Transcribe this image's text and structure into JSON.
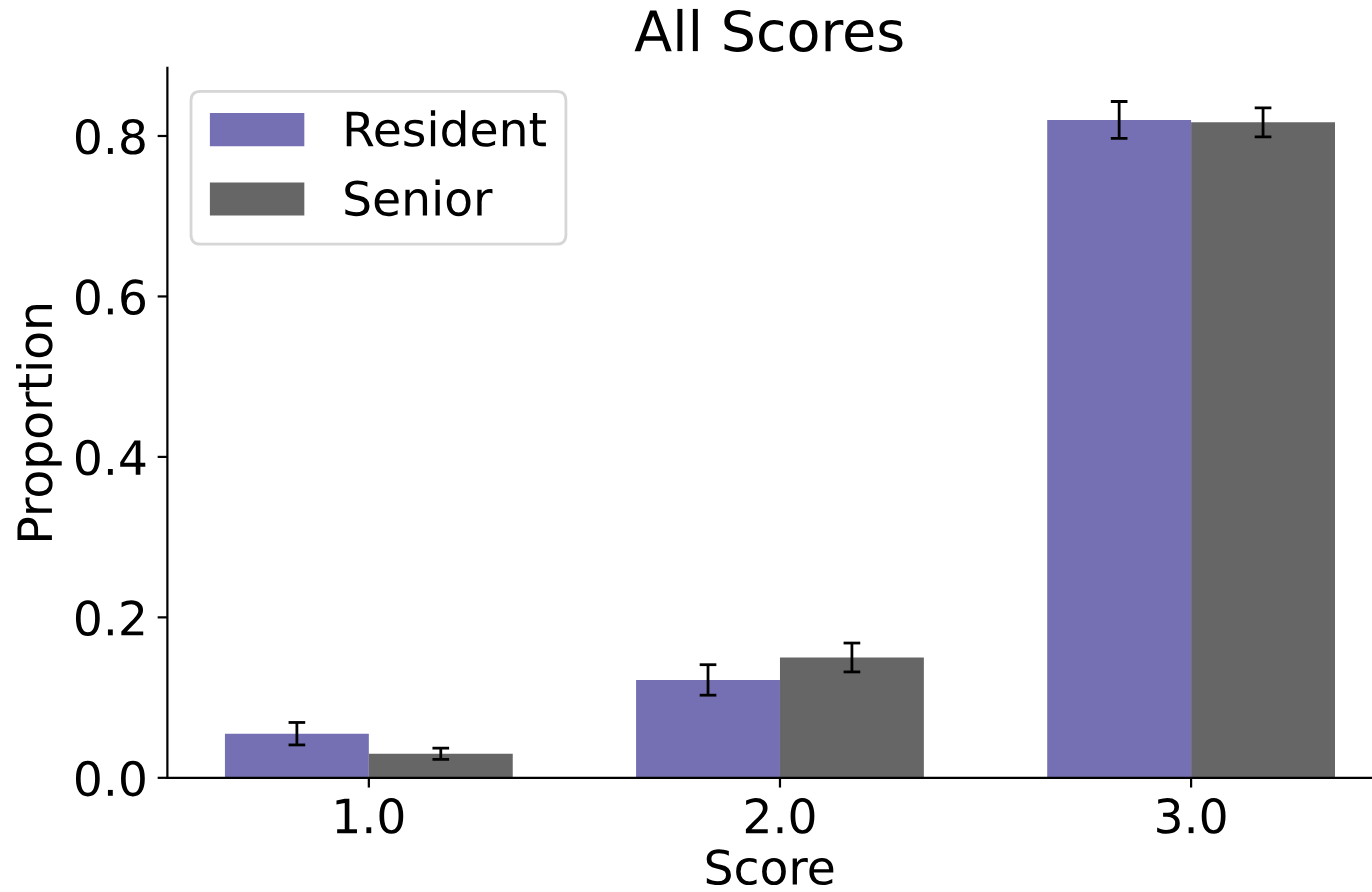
{
  "chart_data": {
    "type": "bar",
    "title": "All Scores",
    "xlabel": "Score",
    "ylabel": "Proportion",
    "categories": [
      "1.0",
      "2.0",
      "3.0"
    ],
    "series": [
      {
        "name": "Resident",
        "color": "#7570b3",
        "values": [
          0.055,
          0.122,
          0.82
        ],
        "errors": [
          0.014,
          0.019,
          0.023
        ]
      },
      {
        "name": "Senior",
        "color": "#666666",
        "values": [
          0.03,
          0.15,
          0.817
        ],
        "errors": [
          0.007,
          0.018,
          0.018
        ]
      }
    ],
    "ylim": [
      0,
      0.885
    ],
    "yticks": [
      {
        "value": 0,
        "label": "0.0"
      },
      0.2,
      0.4,
      0.6,
      0.8
    ],
    "grid": false,
    "legend": "top left"
  }
}
